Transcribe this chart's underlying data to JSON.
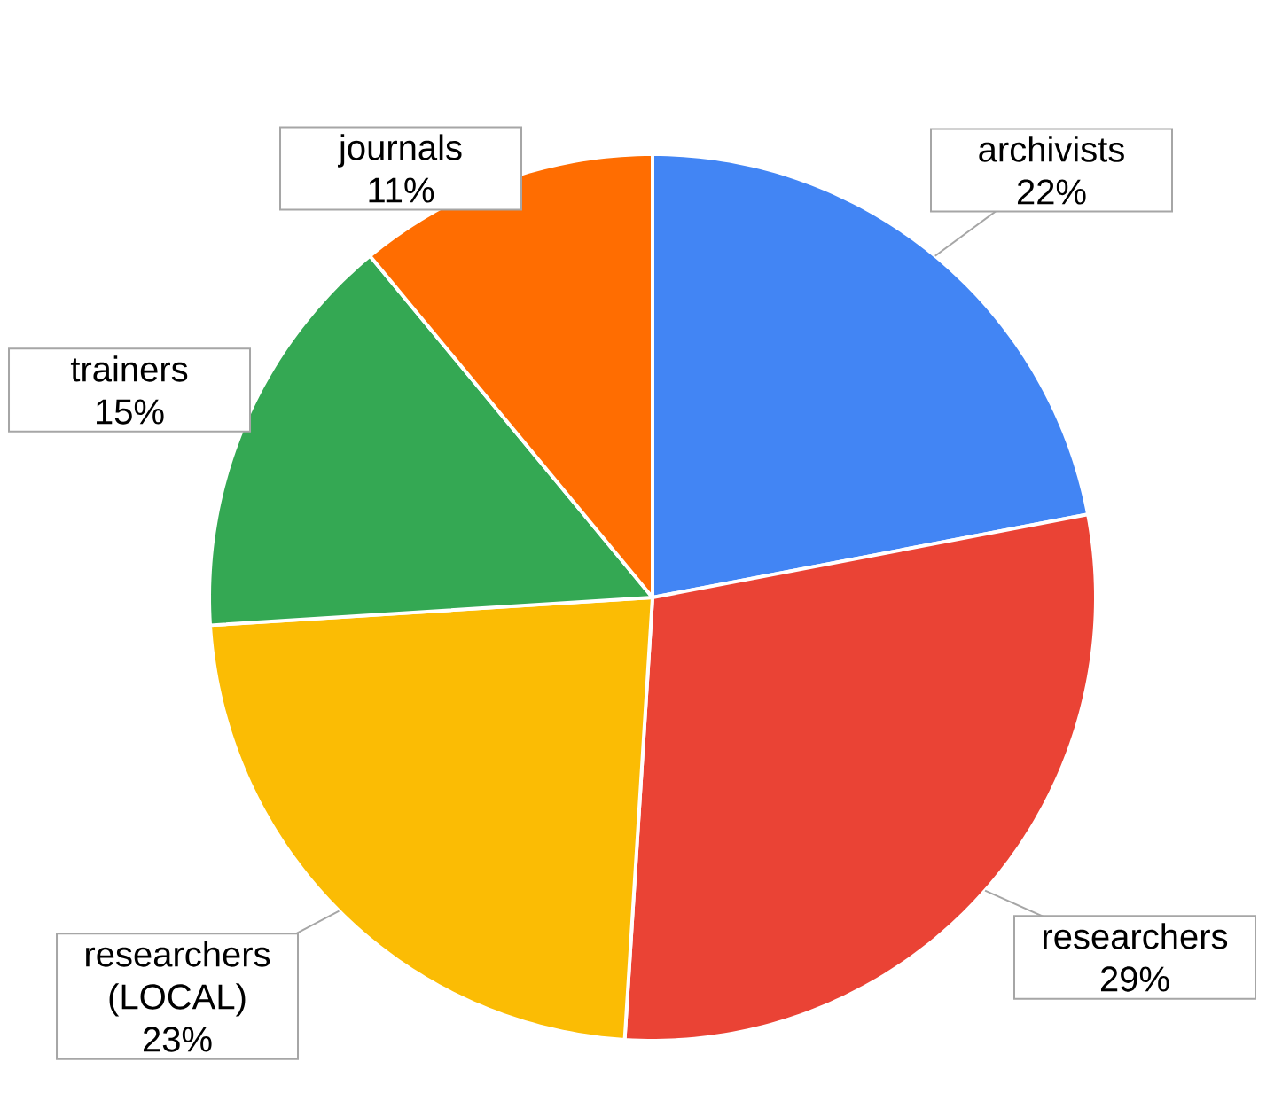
{
  "chart_data": {
    "type": "pie",
    "categories": [
      "archivists",
      "researchers",
      "researchers (LOCAL)",
      "trainers",
      "journals"
    ],
    "values": [
      22,
      29,
      23,
      15,
      11
    ],
    "colors": [
      "#4285f4",
      "#ea4335",
      "#fbbc04",
      "#34a853",
      "#ff6d01"
    ],
    "value_labels": [
      "22%",
      "29%",
      "23%",
      "15%",
      "11%"
    ]
  }
}
